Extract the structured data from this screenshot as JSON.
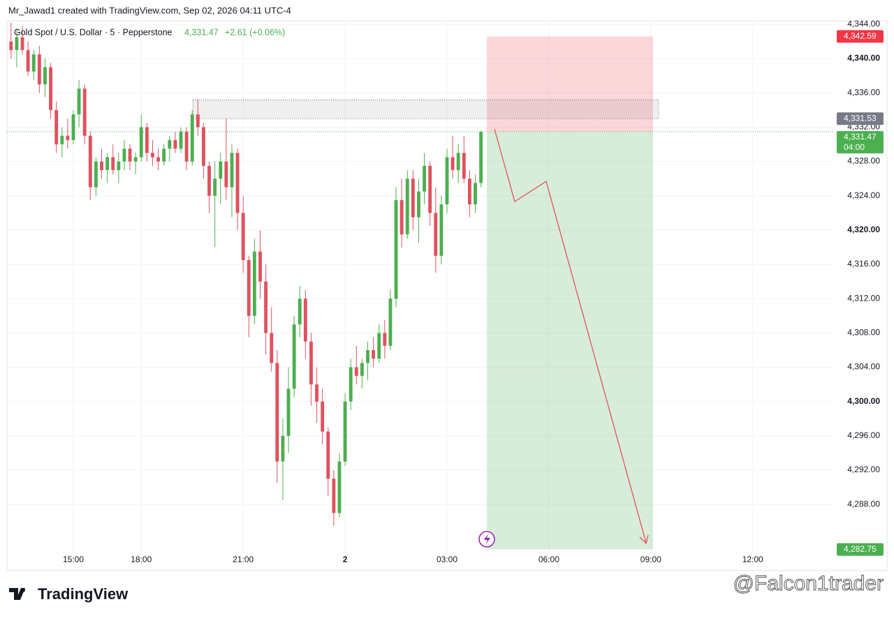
{
  "header": "Mr_Jawad1 created with TradingView.com, Sep 02, 2026 04:11 UTC-4",
  "legend": {
    "symbol": "Gold Spot / U.S. Dollar · 5 · Pepperstone",
    "price": "4,331.47",
    "change": "+2.61 (+0.06%)"
  },
  "footer": {
    "brand": "TradingView",
    "watermark": "@Falcon1trader"
  },
  "chart_data": {
    "type": "candlestick",
    "up_color": "#4caf50",
    "down_color": "#e0515f",
    "categories": [
      "13:10",
      "13:20",
      "13:30",
      "13:40",
      "13:50",
      "14:00",
      "14:10",
      "14:20",
      "14:30",
      "14:40",
      "14:50",
      "15:00",
      "15:10",
      "15:20",
      "15:30",
      "15:40",
      "15:50",
      "16:00",
      "16:10",
      "16:20",
      "16:30",
      "16:40",
      "16:50",
      "18:00",
      "18:10",
      "18:20",
      "18:30",
      "18:40",
      "18:50",
      "19:00",
      "19:10",
      "19:20",
      "19:30",
      "19:40",
      "19:50",
      "20:00",
      "20:10",
      "20:20",
      "20:30",
      "20:40",
      "20:50",
      "21:00",
      "21:10",
      "21:20",
      "21:30",
      "21:40",
      "21:50",
      "22:00",
      "22:10",
      "22:20",
      "22:30",
      "22:40",
      "22:50",
      "23:00",
      "23:10",
      "23:20",
      "23:30",
      "23:40",
      "23:50",
      "00:00",
      "00:10",
      "00:20",
      "00:30",
      "00:40",
      "00:50",
      "01:00",
      "01:10",
      "01:20",
      "01:30",
      "01:40",
      "01:50",
      "02:00",
      "02:10",
      "02:20",
      "02:30",
      "02:40",
      "02:50",
      "03:00",
      "03:10",
      "03:20",
      "03:30",
      "03:40",
      "03:50",
      "04:00"
    ],
    "open": [
      4342,
      4341,
      4342.5,
      4341,
      4338.5,
      4340.5,
      4337,
      4339,
      4334,
      4330,
      4331,
      4330.5,
      4333.5,
      4336.5,
      4331,
      4325,
      4328,
      4327,
      4328.5,
      4327,
      4328,
      4329.5,
      4328,
      4328.5,
      4332,
      4329,
      4328.5,
      4328,
      4329.5,
      4330.5,
      4329.5,
      4331.5,
      4328,
      4333.5,
      4332,
      4327.5,
      4324,
      4326,
      4328,
      4325,
      4329,
      4322,
      4316.5,
      4310,
      4317.5,
      4314,
      4308,
      4304.5,
      4293,
      4296,
      4301.5,
      4309,
      4312,
      4307,
      4302,
      4300,
      4296.5,
      4291,
      4287,
      4293,
      4300,
      4304,
      4303,
      4304.5,
      4306,
      4305,
      4308,
      4306.5,
      4312,
      4323.5,
      4319.5,
      4326,
      4321.5,
      4324.5,
      4327.5,
      4322,
      4317,
      4323,
      4328.5,
      4327,
      4329,
      4326,
      4323,
      4325.5
    ],
    "high": [
      4344.2,
      4343.5,
      4343.8,
      4342,
      4341,
      4341.5,
      4340,
      4339.5,
      4335,
      4332,
      4333,
      4334,
      4337.5,
      4337,
      4331.5,
      4328.5,
      4329.5,
      4329,
      4330,
      4329,
      4330.5,
      4330,
      4329,
      4333.5,
      4332.5,
      4330.5,
      4329.5,
      4330,
      4331,
      4331.5,
      4332,
      4332,
      4334,
      4335.2,
      4332.5,
      4328,
      4328,
      4329,
      4333,
      4330,
      4329.5,
      4324,
      4317,
      4319,
      4320,
      4316,
      4311,
      4306,
      4298,
      4304,
      4310,
      4313.5,
      4313,
      4308,
      4304,
      4301.5,
      4297,
      4292,
      4294,
      4301,
      4305,
      4306.5,
      4305,
      4307,
      4307.5,
      4309,
      4309.5,
      4313,
      4325,
      4326,
      4327,
      4327,
      4326,
      4329,
      4328,
      4325,
      4324,
      4329.5,
      4331,
      4330,
      4331,
      4327,
      4326.5,
      4331.6
    ],
    "low": [
      4340,
      4339,
      4340.5,
      4338,
      4337.5,
      4336,
      4335.5,
      4333,
      4329,
      4328.5,
      4329.5,
      4330,
      4332,
      4330,
      4323.5,
      4324,
      4326,
      4325.5,
      4326.5,
      4325.5,
      4327,
      4327,
      4326.5,
      4328,
      4328,
      4327.5,
      4327,
      4327.5,
      4328,
      4329,
      4329,
      4327,
      4327.5,
      4331,
      4326,
      4322,
      4318,
      4323,
      4323.5,
      4321.5,
      4320,
      4315,
      4307.5,
      4309,
      4312,
      4305.5,
      4303.5,
      4290.5,
      4288.5,
      4294,
      4300.5,
      4307.5,
      4305,
      4299.5,
      4297.5,
      4295,
      4289,
      4285.5,
      4286.5,
      4292.5,
      4299,
      4302,
      4301.5,
      4302.5,
      4304,
      4304.5,
      4305,
      4306,
      4311,
      4318,
      4319,
      4320,
      4318.5,
      4323,
      4320.5,
      4315,
      4316,
      4322,
      4326,
      4325.5,
      4325.5,
      4321.5,
      4322,
      4325
    ],
    "close": [
      4341,
      4342.5,
      4341,
      4338.5,
      4340.5,
      4337,
      4339,
      4334,
      4330,
      4331,
      4330.5,
      4333.5,
      4336.5,
      4331,
      4325,
      4328,
      4327,
      4328.5,
      4327,
      4328,
      4329.5,
      4328,
      4328.5,
      4332,
      4329,
      4328.5,
      4328,
      4329.5,
      4330.5,
      4329.5,
      4331.5,
      4328,
      4333.5,
      4332,
      4327.5,
      4324,
      4326,
      4328,
      4325,
      4329,
      4322,
      4316.5,
      4310,
      4317.5,
      4314,
      4308,
      4304.5,
      4293,
      4296,
      4301.5,
      4309,
      4312,
      4307,
      4302,
      4300,
      4296.5,
      4291,
      4287,
      4293,
      4300,
      4304,
      4303,
      4304.5,
      4306,
      4305,
      4308,
      4306.5,
      4312,
      4323.5,
      4319.5,
      4326,
      4321.5,
      4324.5,
      4327.5,
      4322,
      4317,
      4323,
      4328.5,
      4327,
      4329,
      4326,
      4323,
      4325.5,
      4331.47
    ],
    "xlim": [
      -0.72,
      145.47
    ],
    "xticks": [
      {
        "value": 11,
        "label": "15:00"
      },
      {
        "value": 23,
        "label": "18:00"
      },
      {
        "value": 41,
        "label": "21:00"
      },
      {
        "value": 59,
        "label": "2"
      },
      {
        "value": 77,
        "label": "03:00"
      },
      {
        "value": 95,
        "label": "06:00"
      },
      {
        "value": 113,
        "label": "09:00"
      },
      {
        "value": 131,
        "label": "12:00"
      }
    ],
    "ylim": [
      4282.4,
      4344.4
    ],
    "yticks": [
      {
        "value": 4288,
        "label": "4,288.00"
      },
      {
        "value": 4292,
        "label": "4,292.00"
      },
      {
        "value": 4296,
        "label": "4,296.00"
      },
      {
        "value": 4300,
        "label": "4,300.00"
      },
      {
        "value": 4304,
        "label": "4,304.00"
      },
      {
        "value": 4308,
        "label": "4,308.00"
      },
      {
        "value": 4312,
        "label": "4,312.00"
      },
      {
        "value": 4316,
        "label": "4,316.00"
      },
      {
        "value": 4320,
        "label": "4,320.00"
      },
      {
        "value": 4324,
        "label": "4,324.00"
      },
      {
        "value": 4328,
        "label": "4,328.00"
      },
      {
        "value": 4332,
        "label": "4,332.00"
      },
      {
        "value": 4336,
        "label": "4,336.00"
      },
      {
        "value": 4340,
        "label": "4,340.00"
      },
      {
        "value": 4344,
        "label": "4,344.00"
      }
    ],
    "position": {
      "stop": 4342.59,
      "entry": 4331.47,
      "target": 4282.75
    },
    "zone": {
      "low": 4333.0,
      "high": 4335.2
    },
    "price_labels": [
      {
        "value": 4342.59,
        "label": "4,342.59",
        "color": "#f23645"
      },
      {
        "value": 4331.53,
        "label": "4,331.53",
        "color": "#787b86"
      },
      {
        "value": 4331.47,
        "label": "4,331.47",
        "color": "#4caf50",
        "countdown": "04:00"
      },
      {
        "value": 4282.75,
        "label": "4,282.75",
        "color": "#4caf50"
      }
    ]
  }
}
